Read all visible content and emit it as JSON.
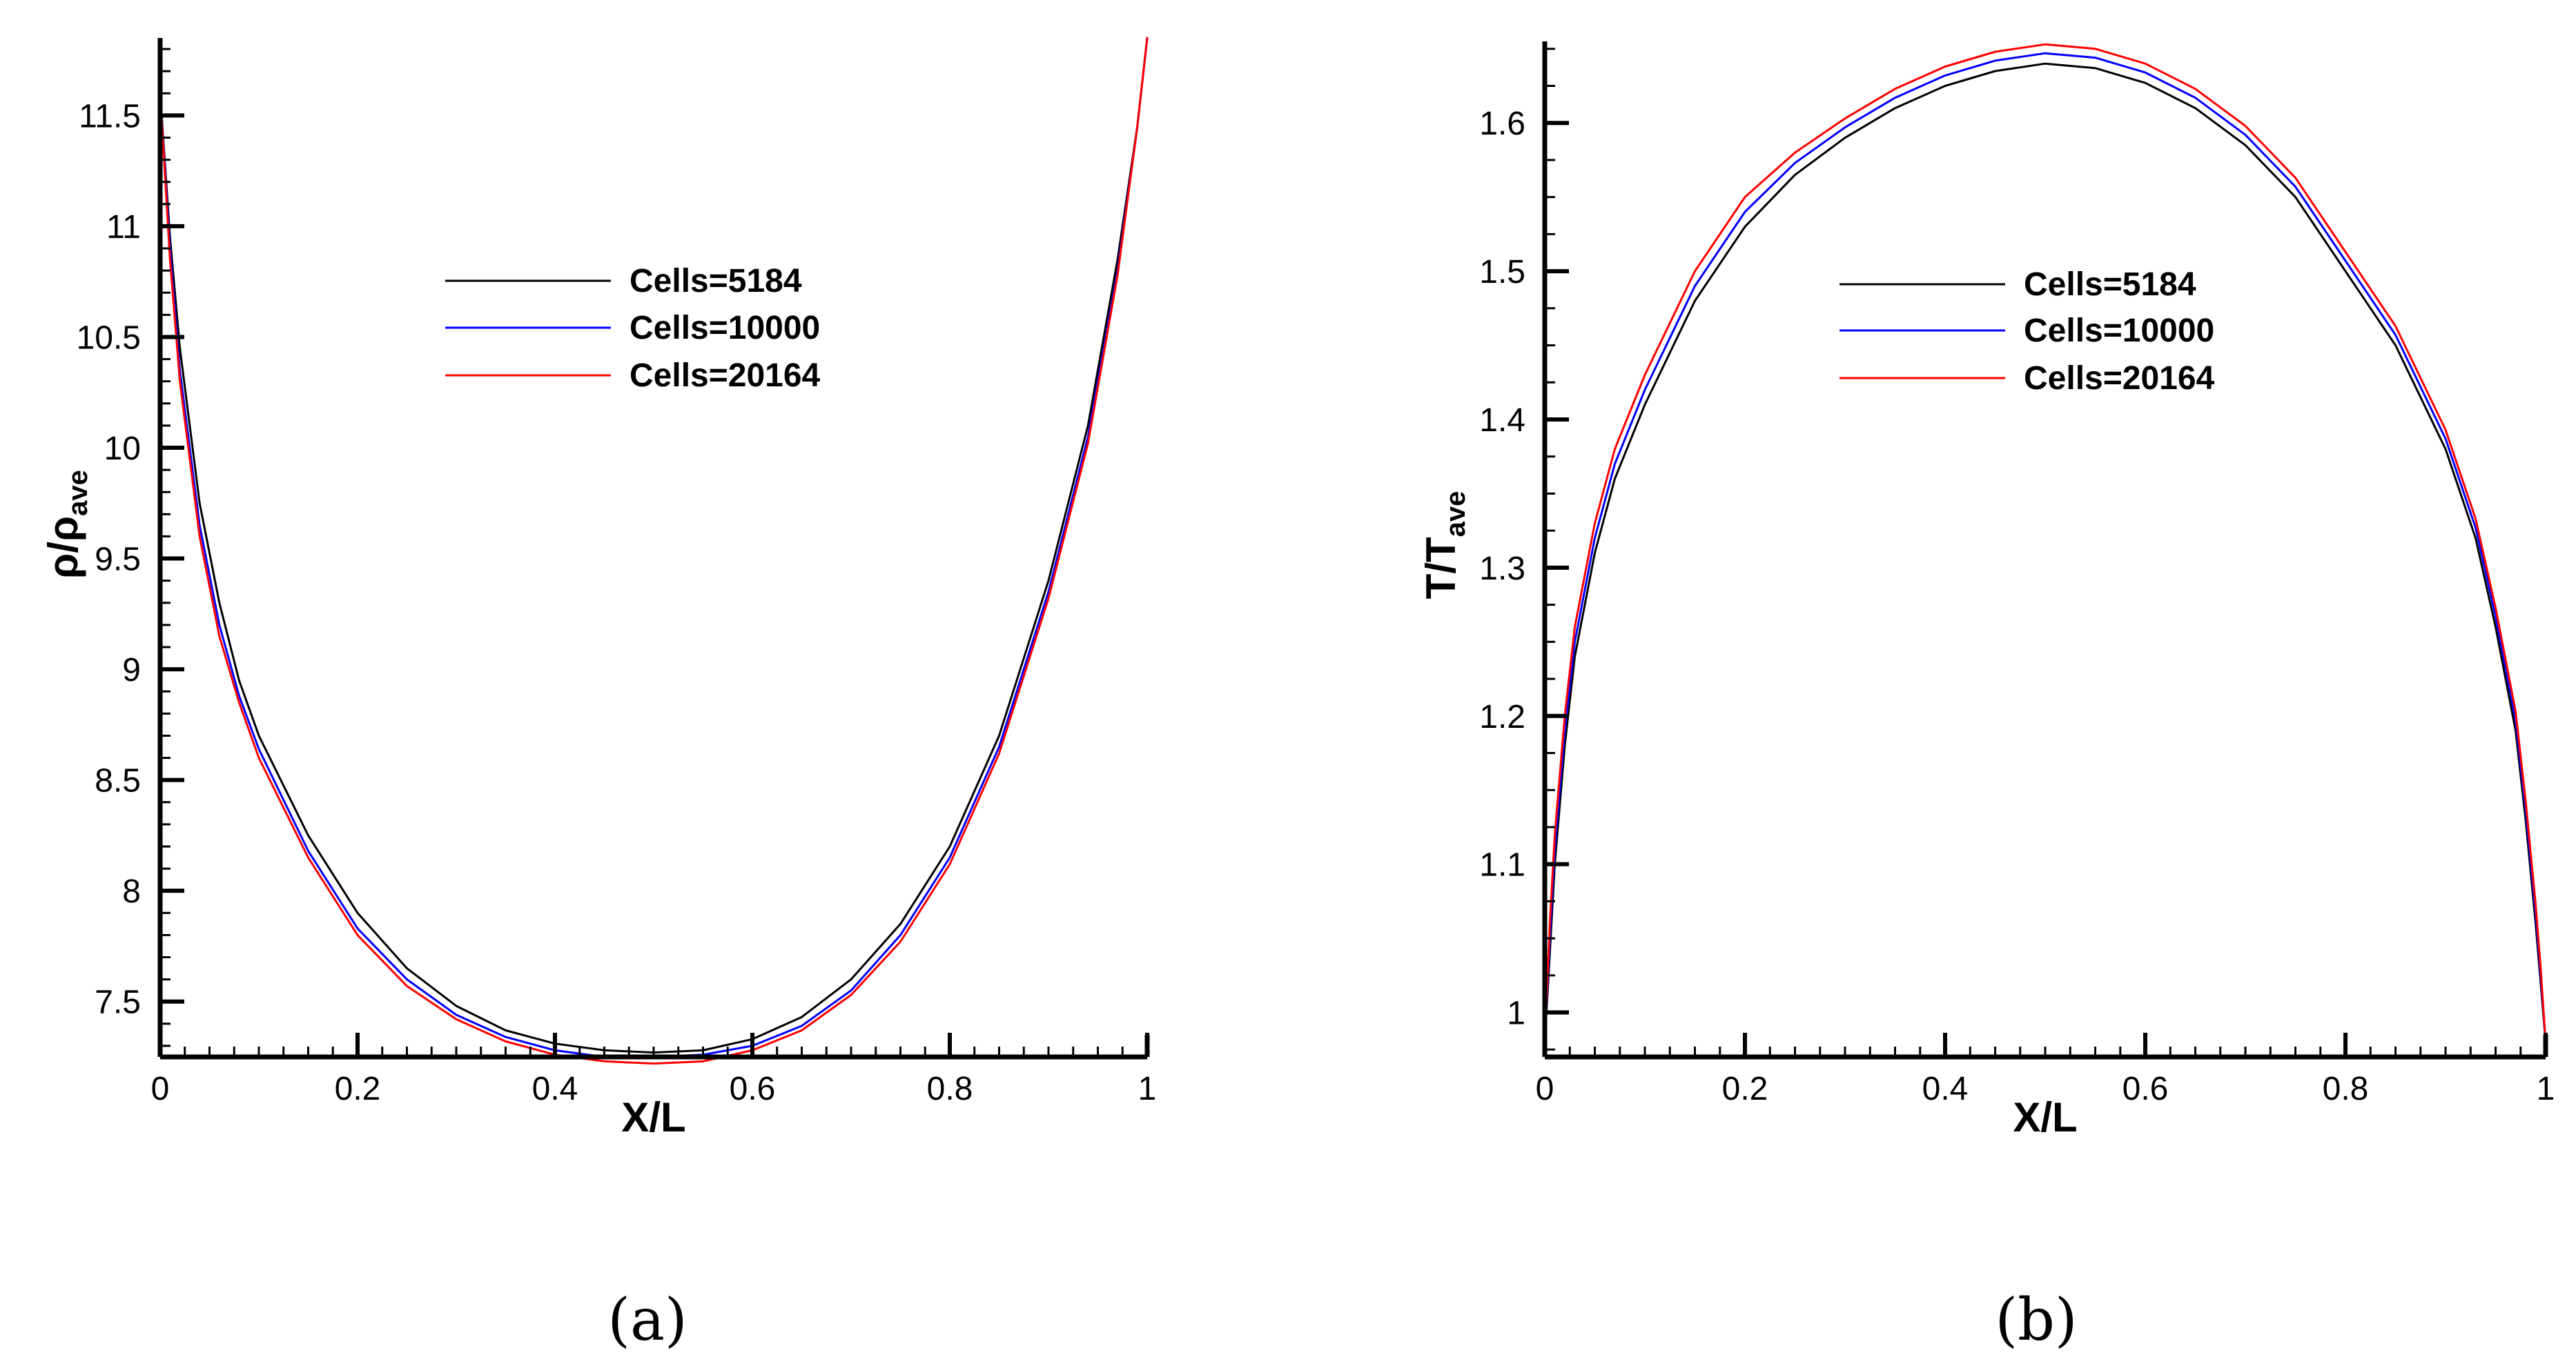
{
  "chart_data": [
    {
      "type": "line",
      "panel_label": "(a)",
      "xlabel": "X/L",
      "ylabel": "ρ/ρ",
      "ylabel_subscript": "ave",
      "xlim": [
        0,
        1
      ],
      "ylim": [
        7.25,
        11.85
      ],
      "xticks": [
        0,
        0.2,
        0.4,
        0.6,
        0.8,
        1
      ],
      "xtick_labels": [
        "0",
        "0.2",
        "0.4",
        "0.6",
        "0.8",
        "1"
      ],
      "yticks": [
        7.5,
        8,
        8.5,
        9,
        9.5,
        10,
        10.5,
        11,
        11.5
      ],
      "ytick_labels": [
        "7.5",
        "8",
        "8.5",
        "9",
        "9.5",
        "10",
        "10.5",
        "11",
        "11.5"
      ],
      "legend_position": "center",
      "series": [
        {
          "name": "Cells=5184",
          "color": "#000000",
          "x": [
            0,
            0.01,
            0.02,
            0.04,
            0.06,
            0.08,
            0.1,
            0.15,
            0.2,
            0.25,
            0.3,
            0.35,
            0.4,
            0.45,
            0.5,
            0.55,
            0.6,
            0.65,
            0.7,
            0.75,
            0.8,
            0.85,
            0.9,
            0.94,
            0.97,
            0.99,
            1.0
          ],
          "y": [
            11.6,
            10.95,
            10.45,
            9.75,
            9.3,
            8.95,
            8.7,
            8.25,
            7.9,
            7.65,
            7.48,
            7.37,
            7.31,
            7.28,
            7.27,
            7.28,
            7.33,
            7.43,
            7.6,
            7.85,
            8.2,
            8.7,
            9.4,
            10.1,
            10.85,
            11.45,
            11.85
          ]
        },
        {
          "name": "Cells=10000",
          "color": "#0000ff",
          "x": [
            0,
            0.01,
            0.02,
            0.04,
            0.06,
            0.08,
            0.1,
            0.15,
            0.2,
            0.25,
            0.3,
            0.35,
            0.4,
            0.45,
            0.5,
            0.55,
            0.6,
            0.65,
            0.7,
            0.75,
            0.8,
            0.85,
            0.9,
            0.94,
            0.97,
            0.99,
            1.0
          ],
          "y": [
            11.6,
            10.9,
            10.35,
            9.65,
            9.2,
            8.88,
            8.64,
            8.18,
            7.83,
            7.6,
            7.44,
            7.34,
            7.28,
            7.25,
            7.25,
            7.26,
            7.3,
            7.39,
            7.55,
            7.8,
            8.15,
            8.65,
            9.35,
            10.05,
            10.8,
            11.45,
            11.85
          ]
        },
        {
          "name": "Cells=20164",
          "color": "#ff0000",
          "x": [
            0,
            0.01,
            0.02,
            0.04,
            0.06,
            0.08,
            0.1,
            0.15,
            0.2,
            0.25,
            0.3,
            0.35,
            0.4,
            0.45,
            0.5,
            0.55,
            0.6,
            0.65,
            0.7,
            0.75,
            0.8,
            0.85,
            0.9,
            0.94,
            0.97,
            0.99,
            1.0
          ],
          "y": [
            11.6,
            10.85,
            10.3,
            9.6,
            9.15,
            8.85,
            8.6,
            8.15,
            7.8,
            7.57,
            7.42,
            7.32,
            7.26,
            7.23,
            7.22,
            7.23,
            7.28,
            7.37,
            7.53,
            7.77,
            8.12,
            8.62,
            9.32,
            10.02,
            10.78,
            11.45,
            11.85
          ]
        }
      ]
    },
    {
      "type": "line",
      "panel_label": "(b)",
      "xlabel": "X/L",
      "ylabel": "T/T",
      "ylabel_subscript": "ave",
      "xlim": [
        0,
        1
      ],
      "ylim": [
        0.97,
        1.655
      ],
      "xticks": [
        0,
        0.2,
        0.4,
        0.6,
        0.8,
        1
      ],
      "xtick_labels": [
        "0",
        "0.2",
        "0.4",
        "0.6",
        "0.8",
        "1"
      ],
      "yticks": [
        1,
        1.1,
        1.2,
        1.3,
        1.4,
        1.5,
        1.6
      ],
      "ytick_labels": [
        "1",
        "1.1",
        "1.2",
        "1.3",
        "1.4",
        "1.5",
        "1.6"
      ],
      "legend_position": "top-center",
      "series": [
        {
          "name": "Cells=5184",
          "color": "#000000",
          "x": [
            0,
            0.005,
            0.01,
            0.02,
            0.03,
            0.05,
            0.07,
            0.1,
            0.15,
            0.2,
            0.25,
            0.3,
            0.35,
            0.4,
            0.45,
            0.5,
            0.55,
            0.6,
            0.65,
            0.7,
            0.75,
            0.8,
            0.85,
            0.9,
            0.93,
            0.95,
            0.97,
            0.98,
            0.99,
            0.995,
            1.0
          ],
          "y": [
            0.98,
            1.04,
            1.1,
            1.18,
            1.24,
            1.31,
            1.36,
            1.41,
            1.48,
            1.53,
            1.565,
            1.59,
            1.61,
            1.625,
            1.635,
            1.64,
            1.637,
            1.627,
            1.61,
            1.585,
            1.55,
            1.5,
            1.45,
            1.38,
            1.32,
            1.26,
            1.19,
            1.13,
            1.06,
            1.02,
            0.98
          ]
        },
        {
          "name": "Cells=10000",
          "color": "#0000ff",
          "x": [
            0,
            0.005,
            0.01,
            0.02,
            0.03,
            0.05,
            0.07,
            0.1,
            0.15,
            0.2,
            0.25,
            0.3,
            0.35,
            0.4,
            0.45,
            0.5,
            0.55,
            0.6,
            0.65,
            0.7,
            0.75,
            0.8,
            0.85,
            0.9,
            0.93,
            0.95,
            0.97,
            0.98,
            0.99,
            0.995,
            1.0
          ],
          "y": [
            0.98,
            1.05,
            1.11,
            1.19,
            1.25,
            1.32,
            1.37,
            1.42,
            1.49,
            1.54,
            1.573,
            1.597,
            1.617,
            1.632,
            1.642,
            1.647,
            1.644,
            1.634,
            1.617,
            1.592,
            1.557,
            1.507,
            1.457,
            1.387,
            1.327,
            1.267,
            1.197,
            1.137,
            1.067,
            1.025,
            0.98
          ]
        },
        {
          "name": "Cells=20164",
          "color": "#ff0000",
          "x": [
            0,
            0.005,
            0.01,
            0.02,
            0.03,
            0.05,
            0.07,
            0.1,
            0.15,
            0.2,
            0.25,
            0.3,
            0.35,
            0.4,
            0.45,
            0.5,
            0.55,
            0.6,
            0.65,
            0.7,
            0.75,
            0.8,
            0.85,
            0.9,
            0.93,
            0.95,
            0.97,
            0.98,
            0.99,
            0.995,
            1.0
          ],
          "y": [
            0.98,
            1.06,
            1.12,
            1.2,
            1.26,
            1.33,
            1.38,
            1.43,
            1.5,
            1.55,
            1.58,
            1.603,
            1.623,
            1.638,
            1.648,
            1.653,
            1.65,
            1.64,
            1.623,
            1.598,
            1.563,
            1.513,
            1.463,
            1.393,
            1.333,
            1.273,
            1.203,
            1.143,
            1.073,
            1.03,
            0.98
          ]
        }
      ]
    }
  ]
}
